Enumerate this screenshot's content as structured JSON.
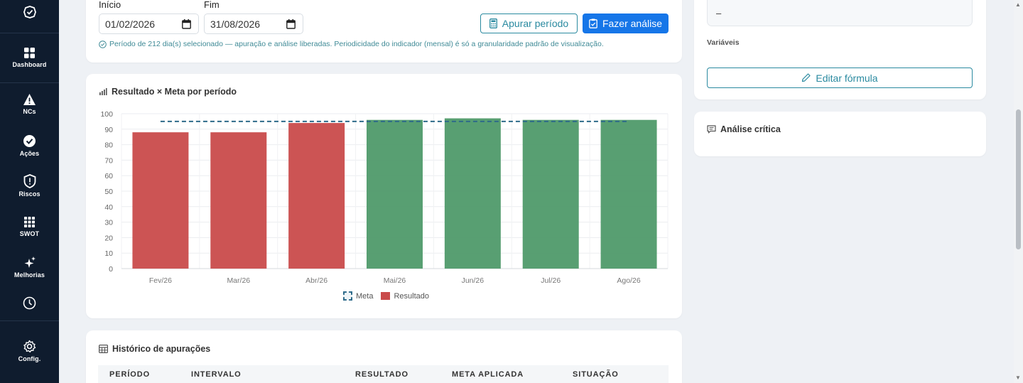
{
  "sidebar": {
    "items": [
      {
        "label": "Dashboard",
        "icon": "grid-icon"
      },
      {
        "label": "NCs",
        "icon": "warning-icon"
      },
      {
        "label": "Ações",
        "icon": "check-circle-icon"
      },
      {
        "label": "Riscos",
        "icon": "shield-icon"
      },
      {
        "label": "SWOT",
        "icon": "grid-3x3-icon"
      },
      {
        "label": "Melhorias",
        "icon": "sparkles-icon"
      },
      {
        "label": "",
        "icon": "clock-icon"
      },
      {
        "label": "Config.",
        "icon": "gear-icon"
      }
    ]
  },
  "period": {
    "start_label": "Início",
    "start_value": "01/02/2026",
    "end_label": "Fim",
    "end_value": "31/08/2026",
    "apurar_button": "Apurar período",
    "analisar_button": "Fazer análise",
    "note": "Período de 212 dia(s) selecionado — apuração e análise liberadas. Periodicidade do indicador (mensal) é só a granularidade padrão de visualização."
  },
  "chart_card": {
    "title": "Resultado × Meta por período",
    "legend_meta": "Meta",
    "legend_result": "Resultado"
  },
  "chart_data": {
    "type": "bar",
    "categories": [
      "Fev/26",
      "Mar/26",
      "Abr/26",
      "Mai/26",
      "Jun/26",
      "Jul/26",
      "Ago/26"
    ],
    "series": [
      {
        "name": "Resultado",
        "values": [
          88,
          88,
          94,
          96,
          97,
          96,
          96
        ],
        "colors": [
          "#c94b4b",
          "#c94b4b",
          "#c94b4b",
          "#4f9a6a",
          "#4f9a6a",
          "#4f9a6a",
          "#4f9a6a"
        ]
      },
      {
        "name": "Meta",
        "values": [
          95,
          95,
          95,
          95,
          95,
          95,
          95
        ],
        "style": "dashed-line",
        "color": "#2e6b8a"
      }
    ],
    "ylim": [
      0,
      100
    ],
    "yticks": [
      0,
      10,
      20,
      30,
      40,
      50,
      60,
      70,
      80,
      90,
      100
    ],
    "grid": true,
    "legend": "bottom-center"
  },
  "history": {
    "title": "Histórico de apurações",
    "columns": [
      "PERÍODO",
      "INTERVALO",
      "RESULTADO",
      "META APLICADA",
      "SITUAÇÃO"
    ]
  },
  "right_panel": {
    "variable_value": "–",
    "variables_label": "Variáveis",
    "edit_formula_button": "Editar fórmula",
    "analysis_title": "Análise crítica"
  },
  "colors": {
    "sidebar_bg": "#0f1c2e",
    "primary": "#1676e8",
    "accent": "#2a8aa0",
    "bar_below": "#c94b4b",
    "bar_met": "#4f9a6a"
  }
}
